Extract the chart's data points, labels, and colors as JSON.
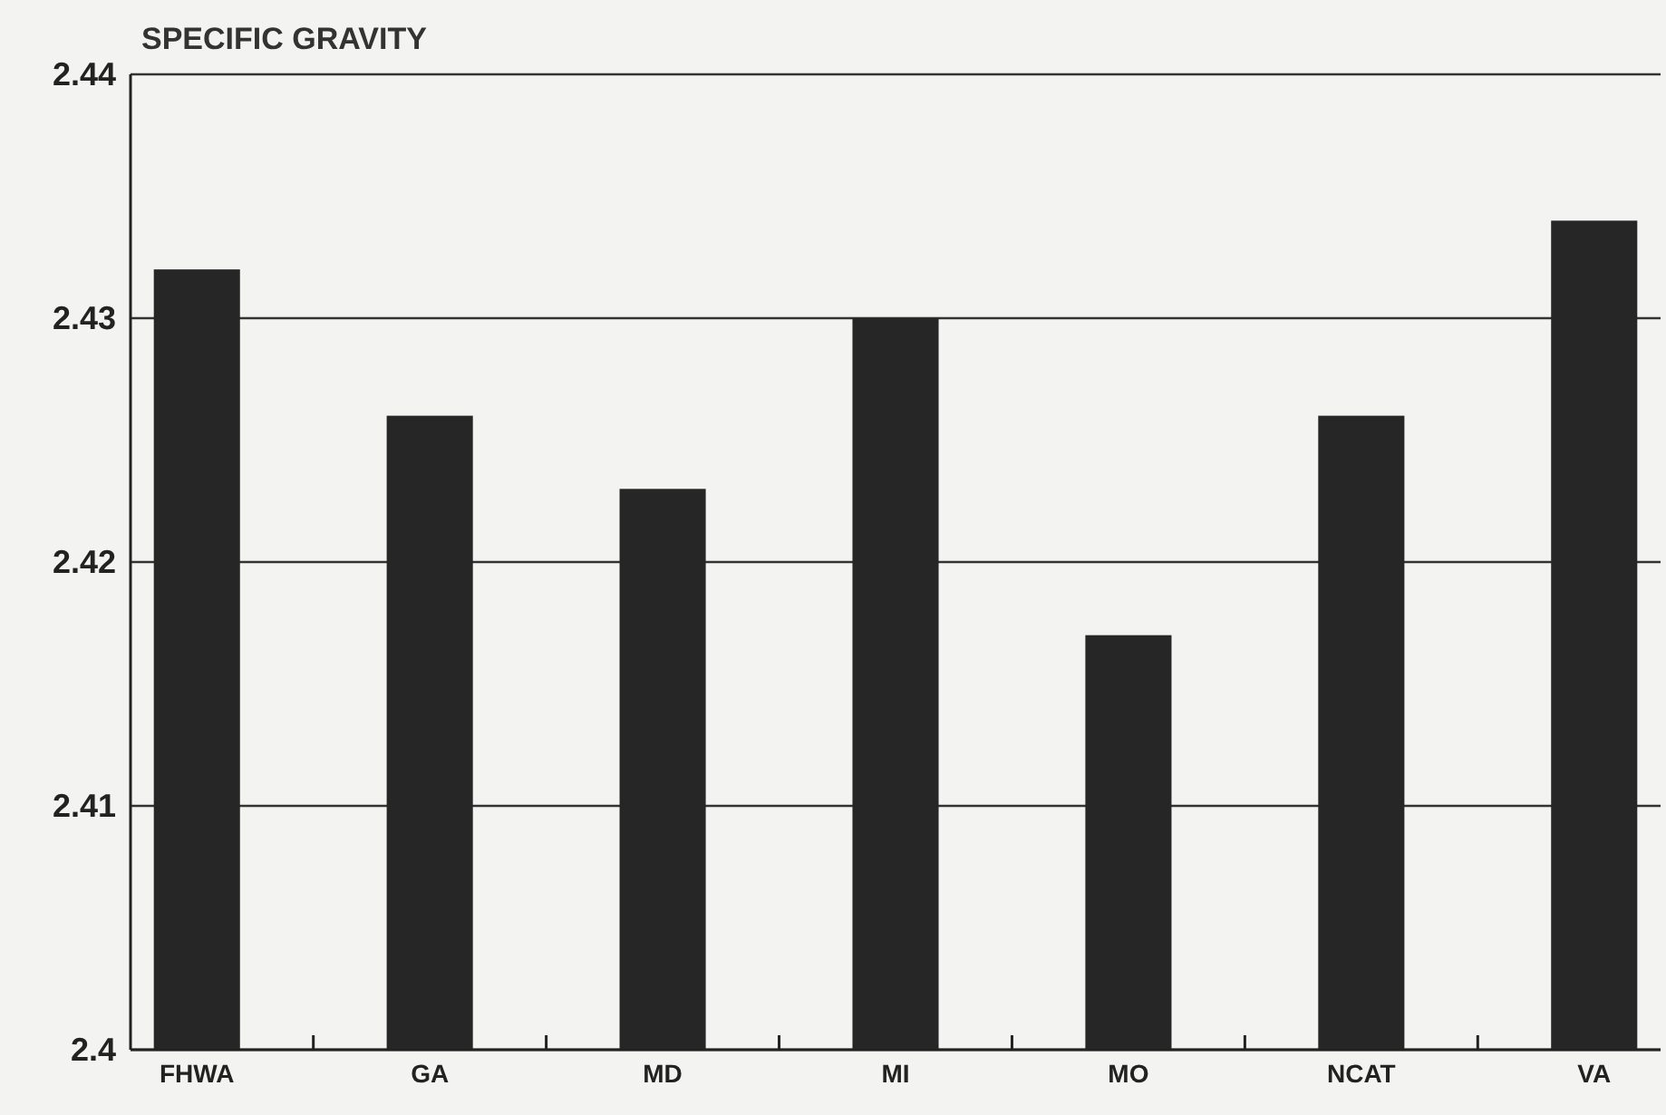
{
  "chart_data": {
    "type": "bar",
    "title": "SPECIFIC GRAVITY",
    "categories": [
      "FHWA",
      "GA",
      "MD",
      "MI",
      "MO",
      "NCAT",
      "VA"
    ],
    "values": [
      2.432,
      2.426,
      2.423,
      2.43,
      2.417,
      2.426,
      2.434
    ],
    "color": "#262626",
    "ylim": [
      2.4,
      2.44
    ],
    "yticks": [
      2.4,
      2.41,
      2.42,
      2.43,
      2.44
    ],
    "grid": "y"
  }
}
